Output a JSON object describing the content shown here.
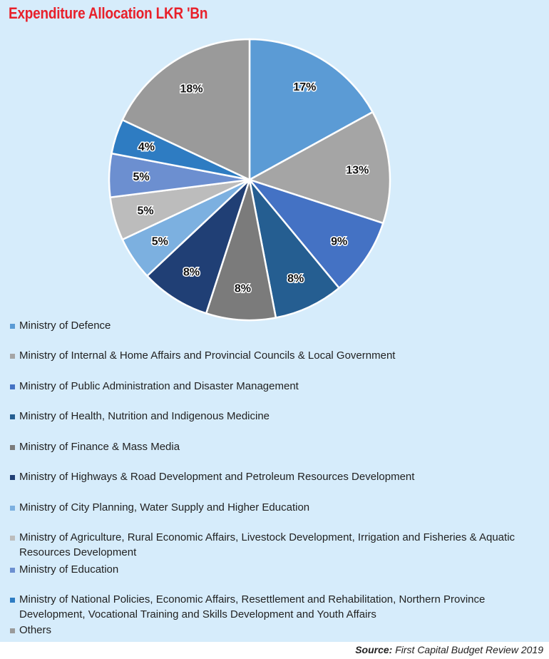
{
  "chart_data": {
    "type": "pie",
    "title": "Expenditure Allocation LKR 'Bn",
    "slices": [
      {
        "label": "Ministry of Defence",
        "value": 17,
        "display": "17%",
        "color": "#5b9bd5"
      },
      {
        "label": "Ministry of Internal & Home Affairs and Provincial Councils & Local Government",
        "value": 13,
        "display": "13%",
        "color": "#a5a5a5"
      },
      {
        "label": "Ministry of Public Administration and Disaster Management",
        "value": 9,
        "display": "9%",
        "color": "#4472c4"
      },
      {
        "label": "Ministry of Health, Nutrition and Indigenous Medicine",
        "value": 8,
        "display": "8%",
        "color": "#255e91"
      },
      {
        "label": "Ministry of Finance & Mass Media",
        "value": 8,
        "display": "8%",
        "color": "#7b7b7b"
      },
      {
        "label": "Ministry of Highways & Road Development and Petroleum Resources Development",
        "value": 8,
        "display": "8%",
        "color": "#203f75"
      },
      {
        "label": "Ministry of City Planning, Water Supply and Higher Education",
        "value": 5,
        "display": "5%",
        "color": "#7cb0e0"
      },
      {
        "label": "Ministry of Agriculture, Rural Economic Affairs, Livestock Development, Irrigation and Fisheries & Aquatic Resources Development",
        "value": 5,
        "display": "5%",
        "color": "#bcbcbc"
      },
      {
        "label": "Ministry of Education",
        "value": 5,
        "display": "5%",
        "color": "#6c8fd0"
      },
      {
        "label": "Ministry of National Policies, Economic Affairs, Resettlement and Rehabilitation, Northern Province Development, Vocational Training and Skills Development and Youth Affairs",
        "value": 4,
        "display": "4%",
        "color": "#2e7cc2"
      },
      {
        "label": "Others",
        "value": 18,
        "display": "18%",
        "color": "#9a9a9a"
      }
    ],
    "legend_placement": "bottom"
  },
  "source": {
    "label": "Source:",
    "text": "First Capital Budget Review 2019"
  }
}
